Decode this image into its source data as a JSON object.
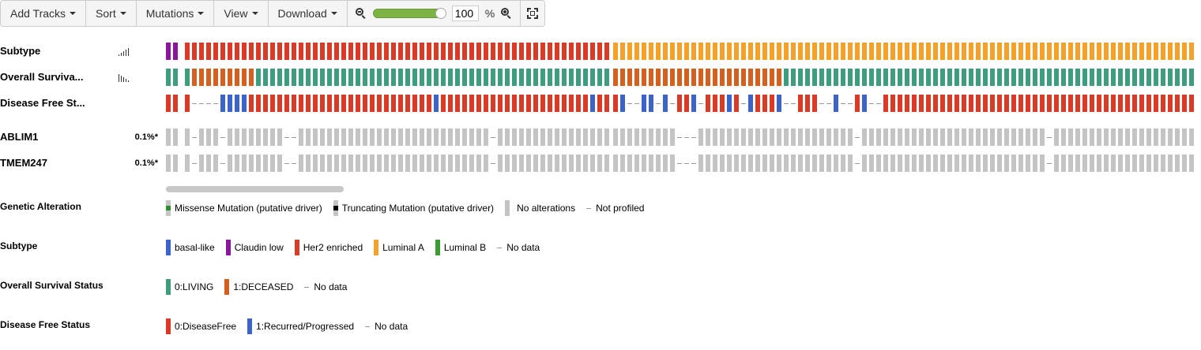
{
  "toolbar": {
    "add_tracks": "Add Tracks",
    "sort": "Sort",
    "mutations": "Mutations",
    "view": "View",
    "download": "Download",
    "zoom_value": "100",
    "zoom_unit": "%",
    "zoom_level": 1.0
  },
  "tracks": [
    {
      "label": "Subtype"
    },
    {
      "label": "Overall Surviva..."
    },
    {
      "label": "Disease Free St..."
    },
    {
      "label": "ABLIM1",
      "pct": "0.1%*"
    },
    {
      "label": "TMEM247",
      "pct": "0.1%*"
    }
  ],
  "colors": {
    "basal_like": "#3c64c8",
    "claudin_low": "#8a169b",
    "her2_enriched": "#d93b26",
    "luminal_a": "#f4a12a",
    "luminal_b": "#3b9b35",
    "living": "#3d9d7c",
    "deceased": "#d3601e",
    "disease_free": "#d93b26",
    "recurred": "#3c64c8",
    "no_alteration": "#c4c4c4",
    "missense": "#2e8b2e",
    "truncating": "#000000",
    "no_data": "#999999"
  },
  "legends": {
    "genetic_alteration": {
      "title": "Genetic Alteration",
      "items": [
        "Missense Mutation (putative driver)",
        "Truncating Mutation (putative driver)",
        "No alterations",
        "Not profiled"
      ]
    },
    "subtype": {
      "title": "Subtype",
      "items": [
        "basal-like",
        "Claudin low",
        "Her2 enriched",
        "Luminal A",
        "Luminal B",
        "No data"
      ]
    },
    "overall_survival": {
      "title": "Overall Survival Status",
      "items": [
        "0:LIVING",
        "1:DECEASED",
        "No data"
      ]
    },
    "disease_free": {
      "title": "Disease Free Status",
      "items": [
        "0:DiseaseFree",
        "1:Recurred/Progressed",
        "No data"
      ]
    }
  }
}
